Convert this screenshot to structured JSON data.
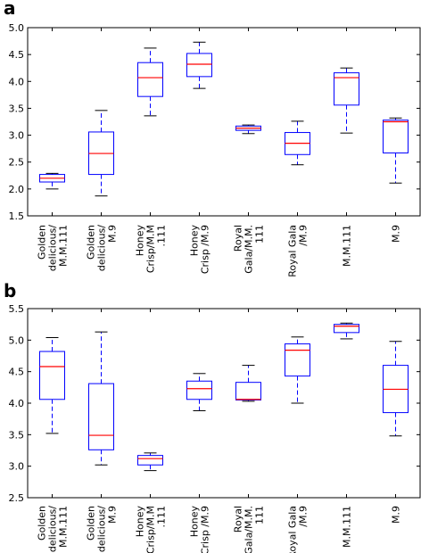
{
  "chart_data": [
    {
      "type": "boxplot",
      "panel_label": "a",
      "categories": [
        [
          "Golden",
          "delicious/",
          "M.M.111"
        ],
        [
          "Golden",
          "delicious/",
          "M.9"
        ],
        [
          "Honey",
          "Crisp/M.M",
          ".111"
        ],
        [
          "Honey",
          "Crisp /M.9"
        ],
        [
          "Royal",
          "Gala/M.M.",
          "111"
        ],
        [
          "Royal Gala",
          "/M.9"
        ],
        [
          "M.M.111"
        ],
        [
          "M.9"
        ]
      ],
      "boxes": [
        {
          "whislo": 2.0,
          "q1": 2.13,
          "med": 2.2,
          "q3": 2.27,
          "whishi": 2.29
        },
        {
          "whislo": 1.87,
          "q1": 2.27,
          "med": 2.66,
          "q3": 3.06,
          "whishi": 3.46
        },
        {
          "whislo": 3.36,
          "q1": 3.72,
          "med": 4.07,
          "q3": 4.35,
          "whishi": 4.62
        },
        {
          "whislo": 3.87,
          "q1": 4.09,
          "med": 4.32,
          "q3": 4.52,
          "whishi": 4.73
        },
        {
          "whislo": 3.03,
          "q1": 3.09,
          "med": 3.13,
          "q3": 3.17,
          "whishi": 3.19
        },
        {
          "whislo": 2.45,
          "q1": 2.64,
          "med": 2.85,
          "q3": 3.05,
          "whishi": 3.26
        },
        {
          "whislo": 3.04,
          "q1": 3.56,
          "med": 4.07,
          "q3": 4.16,
          "whishi": 4.25
        },
        {
          "whislo": 2.11,
          "q1": 2.67,
          "med": 3.25,
          "q3": 3.28,
          "whishi": 3.32
        }
      ],
      "ylim": [
        1.5,
        5.0
      ],
      "yticks": [
        "1.5",
        "2.0",
        "2.5",
        "3.0",
        "3.5",
        "4.0",
        "4.5",
        "5.0"
      ],
      "grid": false,
      "colors": {
        "box": "#0000ff",
        "median": "#ff0000",
        "whisker": "#0000ff",
        "cap": "#000000"
      }
    },
    {
      "type": "boxplot",
      "panel_label": "b",
      "categories": [
        [
          "Golden",
          "delicious/",
          "M.M.111"
        ],
        [
          "Golden",
          "delicious/",
          "M.9"
        ],
        [
          "Honey",
          "Crisp/M.M",
          ".111"
        ],
        [
          "Honey",
          "Crisp /M.9"
        ],
        [
          "Royal",
          "Gala/M.M.",
          "111"
        ],
        [
          "Royal Gala",
          "/M.9"
        ],
        [
          "M.M.111"
        ],
        [
          "M.9"
        ]
      ],
      "boxes": [
        {
          "whislo": 3.52,
          "q1": 4.06,
          "med": 4.58,
          "q3": 4.82,
          "whishi": 5.04
        },
        {
          "whislo": 3.02,
          "q1": 3.26,
          "med": 3.49,
          "q3": 4.31,
          "whishi": 5.13
        },
        {
          "whislo": 2.93,
          "q1": 3.02,
          "med": 3.12,
          "q3": 3.17,
          "whishi": 3.21
        },
        {
          "whislo": 3.88,
          "q1": 4.06,
          "med": 4.23,
          "q3": 4.35,
          "whishi": 4.47
        },
        {
          "whislo": 4.03,
          "q1": 4.05,
          "med": 4.06,
          "q3": 4.33,
          "whishi": 4.6
        },
        {
          "whislo": 4.0,
          "q1": 4.43,
          "med": 4.84,
          "q3": 4.94,
          "whishi": 5.05
        },
        {
          "whislo": 5.02,
          "q1": 5.12,
          "med": 5.22,
          "q3": 5.25,
          "whishi": 5.27
        },
        {
          "whislo": 3.48,
          "q1": 3.85,
          "med": 4.22,
          "q3": 4.6,
          "whishi": 4.98
        }
      ],
      "ylim": [
        2.5,
        5.5
      ],
      "yticks": [
        "2.5",
        "3.0",
        "3.5",
        "4.0",
        "4.5",
        "5.0",
        "5.5"
      ],
      "grid": false,
      "colors": {
        "box": "#0000ff",
        "median": "#ff0000",
        "whisker": "#0000ff",
        "cap": "#000000"
      }
    }
  ]
}
